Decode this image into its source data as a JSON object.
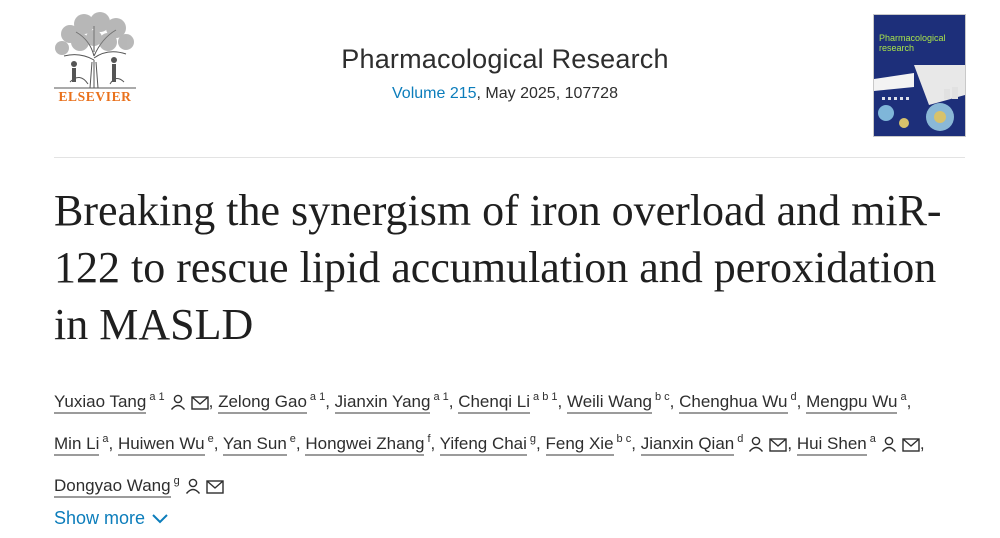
{
  "header": {
    "publisher": "ELSEVIER",
    "journal_title": "Pharmacological Research",
    "issue": {
      "volume_label": "Volume 215",
      "details": ", May 2025, 107728"
    },
    "cover": {
      "text_line1": "Pharmacological",
      "text_line2": "research"
    }
  },
  "article": {
    "title": "Breaking the synergism of iron overload and miR-122 to rescue lipid accumulation and peroxidation in MASLD"
  },
  "authors": [
    {
      "name": "Yuxiao Tang",
      "aff": "a 1",
      "person_icon": true,
      "email_icon": true
    },
    {
      "name": "Zelong Gao",
      "aff": "a 1",
      "person_icon": false,
      "email_icon": false
    },
    {
      "name": "Jianxin Yang",
      "aff": "a 1",
      "person_icon": false,
      "email_icon": false
    },
    {
      "name": "Chenqi Li",
      "aff": "a b 1",
      "person_icon": false,
      "email_icon": false
    },
    {
      "name": "Weili Wang",
      "aff": "b c",
      "person_icon": false,
      "email_icon": false
    },
    {
      "name": "Chenghua Wu",
      "aff": "d",
      "person_icon": false,
      "email_icon": false
    },
    {
      "name": "Mengpu Wu",
      "aff": "a",
      "person_icon": false,
      "email_icon": false
    },
    {
      "name": "Min Li",
      "aff": "a",
      "person_icon": false,
      "email_icon": false
    },
    {
      "name": "Huiwen Wu",
      "aff": "e",
      "person_icon": false,
      "email_icon": false
    },
    {
      "name": "Yan Sun",
      "aff": "e",
      "person_icon": false,
      "email_icon": false
    },
    {
      "name": "Hongwei Zhang",
      "aff": "f",
      "person_icon": false,
      "email_icon": false
    },
    {
      "name": "Yifeng Chai",
      "aff": "g",
      "person_icon": false,
      "email_icon": false
    },
    {
      "name": "Feng Xie",
      "aff": "b c",
      "person_icon": false,
      "email_icon": false
    },
    {
      "name": "Jianxin Qian",
      "aff": "d",
      "person_icon": true,
      "email_icon": true
    },
    {
      "name": "Hui Shen",
      "aff": "a",
      "person_icon": true,
      "email_icon": true
    },
    {
      "name": "Dongyao Wang",
      "aff": "g",
      "person_icon": true,
      "email_icon": true
    }
  ],
  "show_more_label": "Show more",
  "icons": {
    "person": "person-icon",
    "email": "email-icon",
    "chevron": "chevron-down-icon"
  },
  "colors": {
    "publisher_orange": "#e9711c",
    "link_blue": "#0c7dbb",
    "text": "#1f1f1f"
  }
}
